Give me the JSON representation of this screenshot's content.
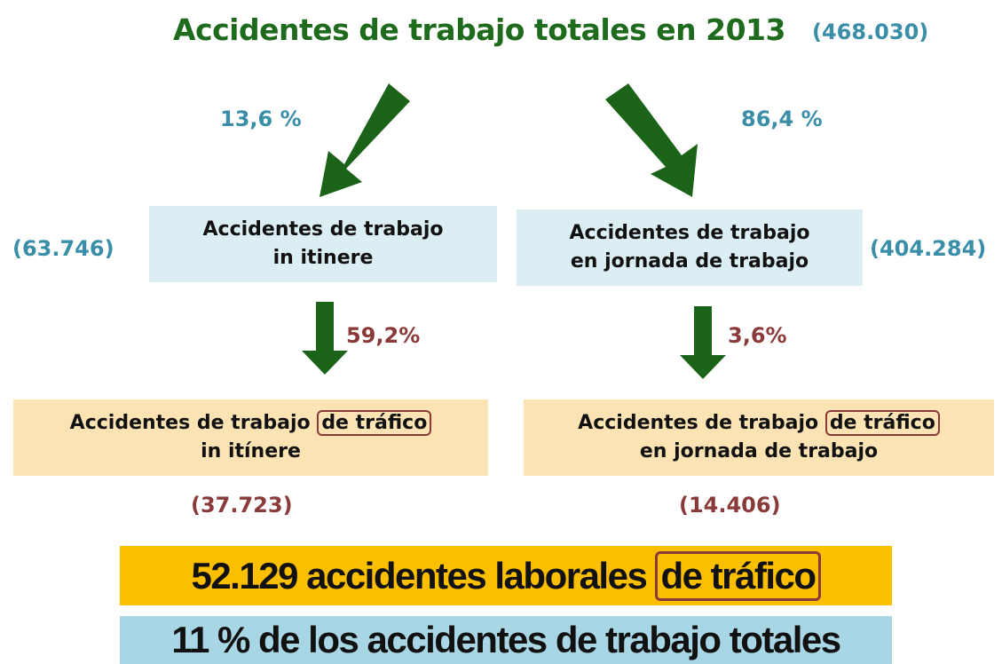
{
  "title": "Accidentes de trabajo totales en 2013",
  "total": "(468.030)",
  "split": {
    "left_percent": "13,6 %",
    "right_percent": "86,4 %"
  },
  "middle": [
    {
      "lines": [
        "Accidentes de trabajo",
        "in itinere"
      ],
      "count": "(63.746)",
      "percent": "59,2%"
    },
    {
      "lines": [
        "Accidentes de trabajo",
        "en jornada de trabajo"
      ],
      "count": "(404.284)",
      "percent": "3,6%"
    }
  ],
  "bottom": [
    {
      "line1": "Accidentes de trabajo",
      "highlight": "de tráfico",
      "line2": "in itínere",
      "count": "(37.723)"
    },
    {
      "line1": "Accidentes de trabajo",
      "highlight": "de tráfico",
      "line2": "en jornada de trabajo",
      "count": "(14.406)"
    }
  ],
  "summary": {
    "text": "52.129 accidentes laborales",
    "highlight": "de tráfico"
  },
  "footer": "11 % de los accidentes de trabajo totales"
}
